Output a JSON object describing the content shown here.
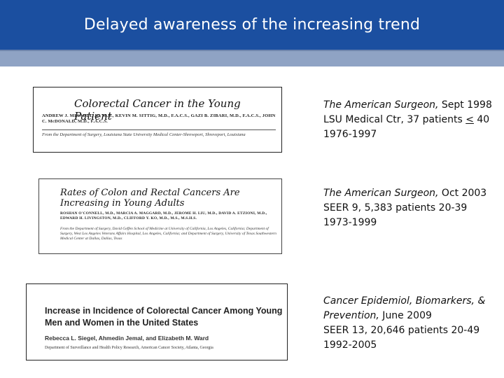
{
  "slide": {
    "title": "Delayed awareness of the increasing trend"
  },
  "articles": [
    {
      "clip_title": "Colorectal Cancer in the Young Patient",
      "clip_authors": "ANDREW J. MINARDI, Jr., M.D., KEVIN M. SITTIG, M.D., F.A.C.S., GAZI B. ZIBARI, M.D., F.A.C.S., JOHN C. McDONALD, M.D., F.A.C.S.",
      "clip_affiliation": "From the Department of Surgery, Louisiana State University Medical Center-Shreveport, Shreveport, Louisiana",
      "journal": "The American Surgeon,",
      "date": " Sept 1998",
      "line2_pre": "LSU Medical Ctr, 37 patients ",
      "line2_le": "<",
      "line2_post": " 40",
      "line3": "1976-1997"
    },
    {
      "clip_title": "Rates of Colon and Rectal Cancers Are Increasing in Young Adults",
      "clip_authors": "ROSHAN O'CONNELL, M.D., MARCIA A. MAGGARD, M.D., JEROME H. LIU, M.D., DAVID A. ETZIONI, M.D., EDWARD H. LIVINGSTON, M.D., CLIFFORD Y. KO, M.D., M.S., M.S.H.S.",
      "clip_affiliation": "From the Department of Surgery, David Geffen School of Medicine at University of California, Los Angeles, California; Department of Surgery, West Los Angeles Veterans Affairs Hospital, Los Angeles, California; and Department of Surgery, University of Texas Southwestern Medical Center at Dallas, Dallas, Texas",
      "journal": "The American Surgeon,",
      "date": " Oct 2003",
      "line2": "SEER 9, 5,383 patients 20-39",
      "line3": "1973-1999"
    },
    {
      "clip_title": "Increase in Incidence of Colorectal Cancer Among Young Men and Women in the United States",
      "clip_authors": "Rebecca L. Siegel, Ahmedin Jemal, and Elizabeth M. Ward",
      "clip_affiliation": "Department of Surveillance and Health Policy Research, American Cancer Society, Atlanta, Georgia",
      "journal_l1": "Cancer Epidemiol, Biomarkers, &",
      "journal_l2": "Prevention,",
      "date": " June 2009",
      "line2": "SEER 13, 20,646 patients 20-49",
      "line3": "1992-2005"
    }
  ],
  "colors": {
    "header": "#1b4fa0",
    "band": "#8fa3c4"
  }
}
